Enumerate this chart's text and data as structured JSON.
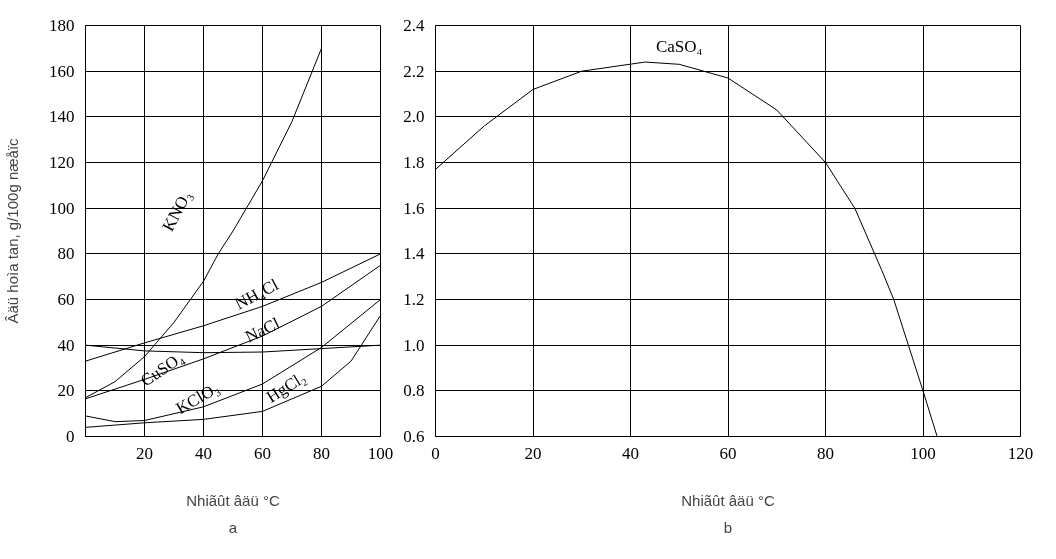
{
  "chart_data": [
    {
      "type": "line",
      "title": "a",
      "xlabel": "Nhiãût âäü °C",
      "ylabel": "Âäü hoìa tan, g/100g næåïc",
      "xlim": [
        0,
        100
      ],
      "xticks": [
        20,
        40,
        60,
        80,
        100
      ],
      "ylim": [
        0,
        180
      ],
      "yticks": [
        0,
        20,
        40,
        60,
        80,
        100,
        120,
        140,
        160,
        180
      ],
      "grid": true,
      "line_style": "solid",
      "series": [
        {
          "name": "KNO₃",
          "color": "#000000",
          "x": [
            0,
            10,
            20,
            30,
            40,
            45,
            50,
            60,
            70,
            80
          ],
          "values": [
            17,
            24,
            35,
            50,
            68,
            80,
            90,
            112,
            138,
            170
          ]
        },
        {
          "name": "NH₄Cl",
          "color": "#000000",
          "x": [
            0,
            20,
            40,
            60,
            80,
            100
          ],
          "values": [
            33,
            41,
            48.5,
            57,
            67.5,
            80
          ]
        },
        {
          "name": "NaCl",
          "color": "#000000",
          "x": [
            0,
            20,
            40,
            60,
            80,
            100
          ],
          "values": [
            40,
            37.5,
            36.7,
            37,
            38.5,
            40
          ]
        },
        {
          "name": "CuSO₄",
          "color": "#000000",
          "x": [
            0,
            20,
            40,
            60,
            80,
            100
          ],
          "values": [
            16.5,
            25,
            34,
            44,
            57,
            75
          ]
        },
        {
          "name": "KClO₃",
          "color": "#000000",
          "x": [
            0,
            10,
            20,
            40,
            60,
            80,
            100
          ],
          "values": [
            9,
            6.5,
            7,
            13,
            23,
            39,
            60
          ]
        },
        {
          "name": "HgCl₂",
          "color": "#000000",
          "x": [
            0,
            20,
            40,
            60,
            80,
            90,
            100
          ],
          "values": [
            4,
            6,
            7.5,
            11,
            22,
            33,
            53
          ]
        }
      ]
    },
    {
      "type": "line",
      "title": "b",
      "xlabel": "Nhiãût âäü °C",
      "xlim": [
        0,
        120
      ],
      "xticks": [
        0,
        20,
        40,
        60,
        80,
        100,
        120
      ],
      "ylim": [
        0.6,
        2.4
      ],
      "yticks": [
        0.6,
        0.8,
        {
          "value": 1,
          "label": "1.0"
        },
        1.2,
        1.4,
        1.6,
        1.8,
        {
          "value": 2,
          "label": "2.0"
        },
        2.2,
        2.4
      ],
      "grid": true,
      "line_style": "solid",
      "series": [
        {
          "name": "CaSO₄",
          "color": "#000000",
          "x": [
            0,
            10,
            20,
            30,
            43,
            50,
            60,
            70,
            80,
            86,
            91.5,
            94,
            97,
            100,
            102.9
          ],
          "values": [
            1.77,
            1.96,
            2.12,
            2.2,
            2.24,
            2.23,
            2.17,
            2.03,
            1.8,
            1.6,
            1.33,
            1.2,
            1.0,
            0.8,
            0.6
          ]
        }
      ]
    }
  ]
}
